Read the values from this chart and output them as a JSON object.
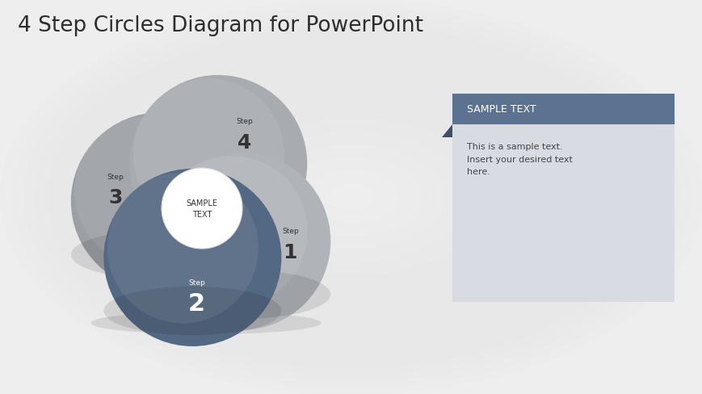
{
  "title": "4 Step Circles Diagram for PowerPoint",
  "title_fontsize": 19,
  "title_color": "#2d2d2d",
  "circle_gray1": "#b0b4b8",
  "circle_gray2": "#9ca0a5",
  "circle_gray3": "#a8acb0",
  "circle_blue": "#536882",
  "circle_white": "#ffffff",
  "step_labels": [
    "Step",
    "Step",
    "Step",
    "Step"
  ],
  "step_numbers": [
    "1",
    "2",
    "3",
    "4"
  ],
  "center_text": "SAMPLE\nTEXT",
  "sample_text_header": "SAMPLE TEXT",
  "sample_text_body": "This is a sample text.\nInsert your desired text\nhere.",
  "header_bg": "#5b7291",
  "header_text_color": "#ffffff",
  "box_bg": "#d8dce2",
  "box_text_color": "#444444",
  "bg_color": "#eeeeee"
}
